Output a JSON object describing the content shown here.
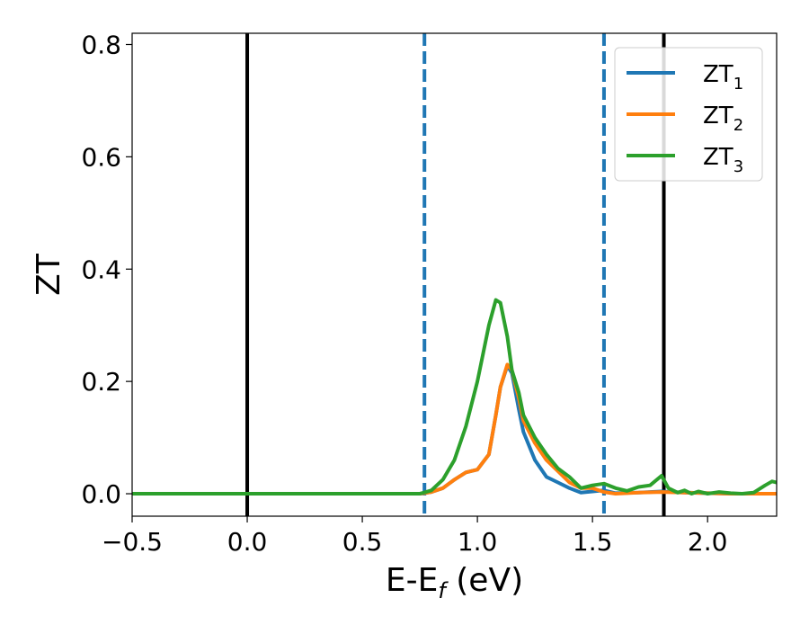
{
  "chart_data": {
    "type": "line",
    "title": "",
    "xlabel_main": "E-E",
    "xlabel_sub": "f",
    "xlabel_unit": " (eV)",
    "ylabel": "ZT",
    "xlim": [
      -0.5,
      2.3
    ],
    "ylim": [
      -0.04,
      0.82
    ],
    "x_ticks": [
      -0.5,
      0.0,
      0.5,
      1.0,
      1.5,
      2.0
    ],
    "x_tick_labels": [
      "−0.5",
      "0.0",
      "0.5",
      "1.0",
      "1.5",
      "2.0"
    ],
    "y_ticks": [
      0.0,
      0.2,
      0.4,
      0.6,
      0.8
    ],
    "y_tick_labels": [
      "0.0",
      "0.2",
      "0.4",
      "0.6",
      "0.8"
    ],
    "grid": false,
    "legend_position": "top-right",
    "vertical_lines": [
      {
        "x": 0.0,
        "style": "solid",
        "color": "#000000"
      },
      {
        "x": 0.77,
        "style": "dashed",
        "color": "#1f77b4"
      },
      {
        "x": 1.55,
        "style": "dashed",
        "color": "#1f77b4"
      },
      {
        "x": 1.81,
        "style": "solid",
        "color": "#000000"
      }
    ],
    "series": [
      {
        "name": "ZT",
        "sub": "1",
        "color": "#1f77b4",
        "points": [
          [
            -0.5,
            0
          ],
          [
            0.75,
            0
          ],
          [
            0.8,
            0.003
          ],
          [
            0.85,
            0.01
          ],
          [
            0.9,
            0.025
          ],
          [
            0.95,
            0.038
          ],
          [
            1.0,
            0.043
          ],
          [
            1.05,
            0.07
          ],
          [
            1.08,
            0.14
          ],
          [
            1.1,
            0.19
          ],
          [
            1.13,
            0.228
          ],
          [
            1.15,
            0.215
          ],
          [
            1.18,
            0.15
          ],
          [
            1.2,
            0.11
          ],
          [
            1.25,
            0.06
          ],
          [
            1.3,
            0.03
          ],
          [
            1.35,
            0.02
          ],
          [
            1.4,
            0.01
          ],
          [
            1.45,
            0.002
          ],
          [
            1.5,
            0.004
          ],
          [
            1.55,
            0.006
          ],
          [
            1.6,
            0.001
          ],
          [
            1.7,
            0.002
          ],
          [
            1.8,
            0.004
          ],
          [
            1.9,
            0.002
          ],
          [
            2.0,
            0.001
          ],
          [
            2.1,
            0.0
          ],
          [
            2.3,
            0.0
          ]
        ]
      },
      {
        "name": "ZT",
        "sub": "2",
        "color": "#ff7f0e",
        "points": [
          [
            -0.5,
            0
          ],
          [
            0.75,
            0
          ],
          [
            0.8,
            0.003
          ],
          [
            0.85,
            0.01
          ],
          [
            0.9,
            0.025
          ],
          [
            0.95,
            0.038
          ],
          [
            1.0,
            0.043
          ],
          [
            1.05,
            0.07
          ],
          [
            1.08,
            0.14
          ],
          [
            1.1,
            0.19
          ],
          [
            1.13,
            0.23
          ],
          [
            1.15,
            0.22
          ],
          [
            1.18,
            0.17
          ],
          [
            1.2,
            0.13
          ],
          [
            1.25,
            0.09
          ],
          [
            1.3,
            0.06
          ],
          [
            1.35,
            0.04
          ],
          [
            1.4,
            0.02
          ],
          [
            1.45,
            0.01
          ],
          [
            1.5,
            0.01
          ],
          [
            1.55,
            0.003
          ],
          [
            1.6,
            0.0
          ],
          [
            1.7,
            0.002
          ],
          [
            1.8,
            0.003
          ],
          [
            1.9,
            0.002
          ],
          [
            2.0,
            0.001
          ],
          [
            2.1,
            0.0
          ],
          [
            2.3,
            0.0
          ]
        ]
      },
      {
        "name": "ZT",
        "sub": "3",
        "color": "#2ca02c",
        "points": [
          [
            -0.5,
            0
          ],
          [
            0.75,
            0
          ],
          [
            0.8,
            0.006
          ],
          [
            0.85,
            0.025
          ],
          [
            0.9,
            0.06
          ],
          [
            0.95,
            0.12
          ],
          [
            1.0,
            0.2
          ],
          [
            1.05,
            0.3
          ],
          [
            1.08,
            0.345
          ],
          [
            1.1,
            0.34
          ],
          [
            1.13,
            0.28
          ],
          [
            1.15,
            0.22
          ],
          [
            1.18,
            0.18
          ],
          [
            1.2,
            0.14
          ],
          [
            1.25,
            0.1
          ],
          [
            1.3,
            0.07
          ],
          [
            1.35,
            0.045
          ],
          [
            1.4,
            0.03
          ],
          [
            1.45,
            0.01
          ],
          [
            1.5,
            0.015
          ],
          [
            1.55,
            0.018
          ],
          [
            1.6,
            0.01
          ],
          [
            1.65,
            0.005
          ],
          [
            1.7,
            0.012
          ],
          [
            1.75,
            0.015
          ],
          [
            1.8,
            0.032
          ],
          [
            1.83,
            0.01
          ],
          [
            1.87,
            0.002
          ],
          [
            1.9,
            0.006
          ],
          [
            1.93,
            0.0
          ],
          [
            1.96,
            0.004
          ],
          [
            2.0,
            0.0
          ],
          [
            2.05,
            0.003
          ],
          [
            2.1,
            0.001
          ],
          [
            2.15,
            0.0
          ],
          [
            2.2,
            0.002
          ],
          [
            2.25,
            0.015
          ],
          [
            2.28,
            0.022
          ],
          [
            2.3,
            0.02
          ]
        ]
      }
    ]
  }
}
